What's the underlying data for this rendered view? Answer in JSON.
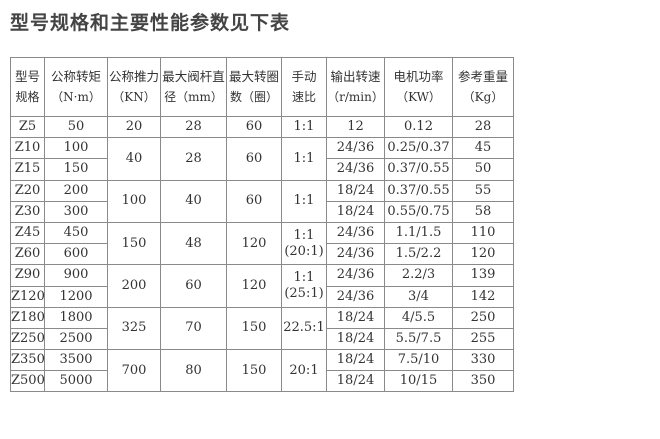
{
  "title": "型号规格和主要性能参数见下表",
  "headers": [
    {
      "label": "型号",
      "unit": "规格"
    },
    {
      "label": "公称转矩",
      "unit": "（N·m）"
    },
    {
      "label": "公称推力",
      "unit": "（KN）"
    },
    {
      "label": "最大阀杆直",
      "unit": "径（mm）"
    },
    {
      "label": "最大转圈",
      "unit": "数（圈）"
    },
    {
      "label": "手动",
      "unit": "速比"
    },
    {
      "label": "输出转速",
      "unit": "（r/min）"
    },
    {
      "label": "电机功率",
      "unit": "（KW）"
    },
    {
      "label": "参考重量",
      "unit": "（Kg）"
    }
  ],
  "groups": [
    {
      "thrust": "20",
      "stem": "28",
      "turns": "60",
      "ratio": "1:1",
      "models": [
        {
          "model": "Z5",
          "torque": "50",
          "speed": "12",
          "power": "0.12",
          "weight": "28"
        }
      ]
    },
    {
      "thrust": "40",
      "stem": "28",
      "turns": "60",
      "ratio": "1:1",
      "models": [
        {
          "model": "Z10",
          "torque": "100",
          "speed": "24/36",
          "power": "0.25/0.37",
          "weight": "45"
        },
        {
          "model": "Z15",
          "torque": "150",
          "speed": "24/36",
          "power": "0.37/0.55",
          "weight": "50"
        }
      ]
    },
    {
      "thrust": "100",
      "stem": "40",
      "turns": "60",
      "ratio": "1:1",
      "models": [
        {
          "model": "Z20",
          "torque": "200",
          "speed": "18/24",
          "power": "0.37/0.55",
          "weight": "55"
        },
        {
          "model": "Z30",
          "torque": "300",
          "speed": "18/24",
          "power": "0.55/0.75",
          "weight": "58"
        }
      ]
    },
    {
      "thrust": "150",
      "stem": "48",
      "turns": "120",
      "ratio": "1:1\n(20:1)",
      "models": [
        {
          "model": "Z45",
          "torque": "450",
          "speed": "24/36",
          "power": "1.1/1.5",
          "weight": "110"
        },
        {
          "model": "Z60",
          "torque": "600",
          "speed": "24/36",
          "power": "1.5/2.2",
          "weight": "120"
        }
      ]
    },
    {
      "thrust": "200",
      "stem": "60",
      "turns": "120",
      "ratio": "1:1\n(25:1)",
      "models": [
        {
          "model": "Z90",
          "torque": "900",
          "speed": "24/36",
          "power": "2.2/3",
          "weight": "139"
        },
        {
          "model": "Z120",
          "torque": "1200",
          "speed": "24/36",
          "power": "3/4",
          "weight": "142"
        }
      ]
    },
    {
      "thrust": "325",
      "stem": "70",
      "turns": "150",
      "ratio": "22.5:1",
      "models": [
        {
          "model": "Z180",
          "torque": "1800",
          "speed": "18/24",
          "power": "4/5.5",
          "weight": "250"
        },
        {
          "model": "Z250",
          "torque": "2500",
          "speed": "18/24",
          "power": "5.5/7.5",
          "weight": "255"
        }
      ]
    },
    {
      "thrust": "700",
      "stem": "80",
      "turns": "150",
      "ratio": "20:1",
      "models": [
        {
          "model": "Z350",
          "torque": "3500",
          "speed": "18/24",
          "power": "7.5/10",
          "weight": "330"
        },
        {
          "model": "Z500",
          "torque": "5000",
          "speed": "18/24",
          "power": "10/15",
          "weight": "350"
        }
      ]
    }
  ]
}
